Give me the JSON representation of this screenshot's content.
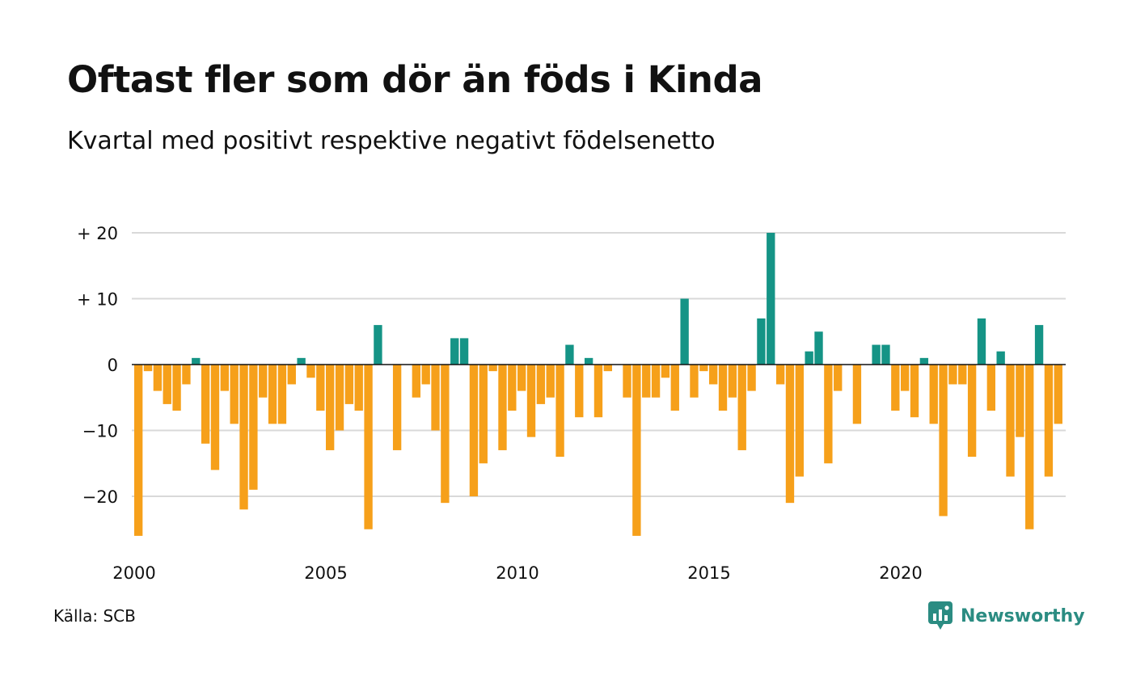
{
  "title": "Oftast fler som dör än föds i Kinda",
  "subtitle": "Kvartal med positivt respektive negativt födelsenetto",
  "source": "Källa: SCB",
  "brand": "Newsworthy",
  "colors": {
    "positive": "#159486",
    "negative": "#f6a01a",
    "grid": "#d9d9d9",
    "zero_line": "#111111",
    "brand": "#2b8c82"
  },
  "chart_data": {
    "type": "bar",
    "title": "Oftast fler som dör än föds i Kinda",
    "subtitle": "Kvartal med positivt respektive negativt födelsenetto",
    "x_start": 2000,
    "x_end": 2024.5,
    "x_ticks": [
      2000,
      2005,
      2010,
      2015,
      2020
    ],
    "x_tick_labels": [
      "2000",
      "2005",
      "2010",
      "2015",
      "2020"
    ],
    "y_ticks": [
      20,
      10,
      0,
      -10,
      -20
    ],
    "y_tick_labels": [
      "+ 20",
      "+ 10",
      "0",
      "−10",
      "−20"
    ],
    "ylim": [
      -28,
      21
    ],
    "grid": true,
    "values": [
      -26,
      -1,
      -4,
      -6,
      -7,
      -3,
      1,
      -12,
      -16,
      -4,
      -9,
      -22,
      -19,
      -5,
      -9,
      -9,
      -3,
      1,
      -2,
      -7,
      -13,
      -10,
      -6,
      -7,
      -25,
      6,
      0,
      -13,
      0,
      -5,
      -3,
      -10,
      -21,
      4,
      4,
      -20,
      -15,
      -1,
      -13,
      -7,
      -4,
      -11,
      -6,
      -5,
      -14,
      3,
      -8,
      1,
      -8,
      -1,
      0,
      -5,
      -26,
      -5,
      -5,
      -2,
      -7,
      10,
      -5,
      -1,
      -3,
      -7,
      -5,
      -13,
      -4,
      7,
      20,
      -3,
      -21,
      -17,
      2,
      5,
      -15,
      -4,
      0,
      -9,
      0,
      3,
      3,
      -7,
      -4,
      -8,
      1,
      -9,
      -23,
      -3,
      -3,
      -14,
      7,
      -7,
      2,
      -17,
      -11,
      -25,
      6,
      -17,
      -9
    ]
  }
}
